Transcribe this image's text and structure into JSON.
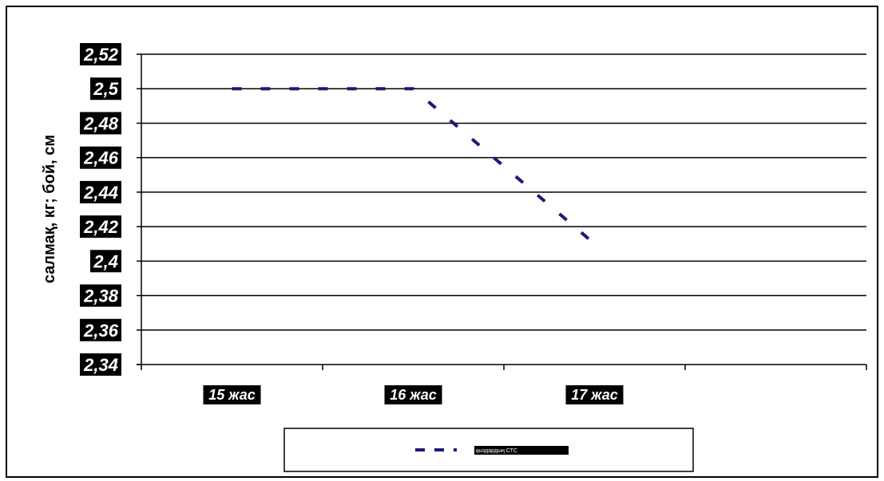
{
  "chart_data": {
    "type": "line",
    "ylabel": "салмақ, кг; бой, см",
    "xlabel": "",
    "ylim": [
      2.34,
      2.52
    ],
    "y_ticks": [
      "2,52",
      "2,5",
      "2,48",
      "2,46",
      "2,44",
      "2,42",
      "2,4",
      "2,38",
      "2,36",
      "2,34"
    ],
    "y_tick_values": [
      2.52,
      2.5,
      2.48,
      2.46,
      2.44,
      2.42,
      2.4,
      2.38,
      2.36,
      2.34
    ],
    "categories": [
      "15 жас",
      "16 жас",
      "17 жас"
    ],
    "grid": true,
    "legend_position": "bottom",
    "series": [
      {
        "name": "қыздардың СТС",
        "line_style": "dashed",
        "color": "#1a1a7a",
        "values": [
          2.5,
          2.5,
          2.41
        ]
      }
    ]
  }
}
